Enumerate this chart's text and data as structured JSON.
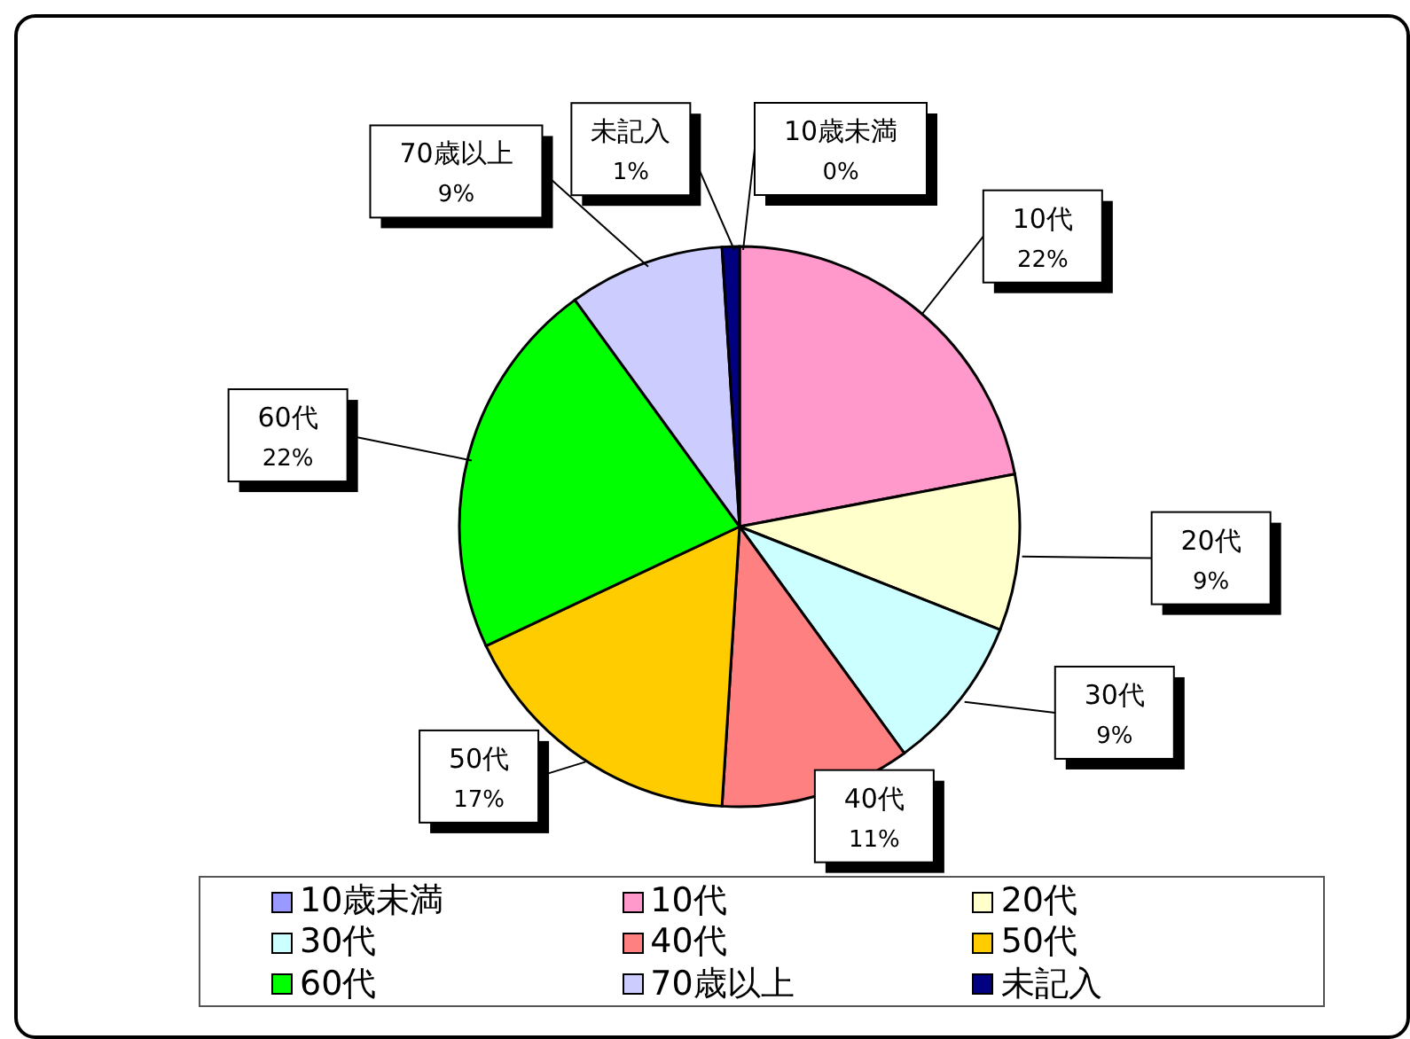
{
  "chart_data": {
    "type": "pie",
    "categories": [
      "10歳未満",
      "10代",
      "20代",
      "30代",
      "40代",
      "50代",
      "60代",
      "70歳以上",
      "未記入"
    ],
    "values": [
      0,
      22,
      9,
      9,
      11,
      17,
      22,
      9,
      1
    ],
    "value_labels": [
      "0%",
      "22%",
      "9%",
      "9%",
      "11%",
      "17%",
      "22%",
      "9%",
      "1%"
    ],
    "colors": [
      "#9999ff",
      "#ff99cc",
      "#ffffcc",
      "#ccffff",
      "#ff8080",
      "#ffcc00",
      "#00ff00",
      "#ccccff",
      "#000080"
    ],
    "legend": "bottom"
  }
}
